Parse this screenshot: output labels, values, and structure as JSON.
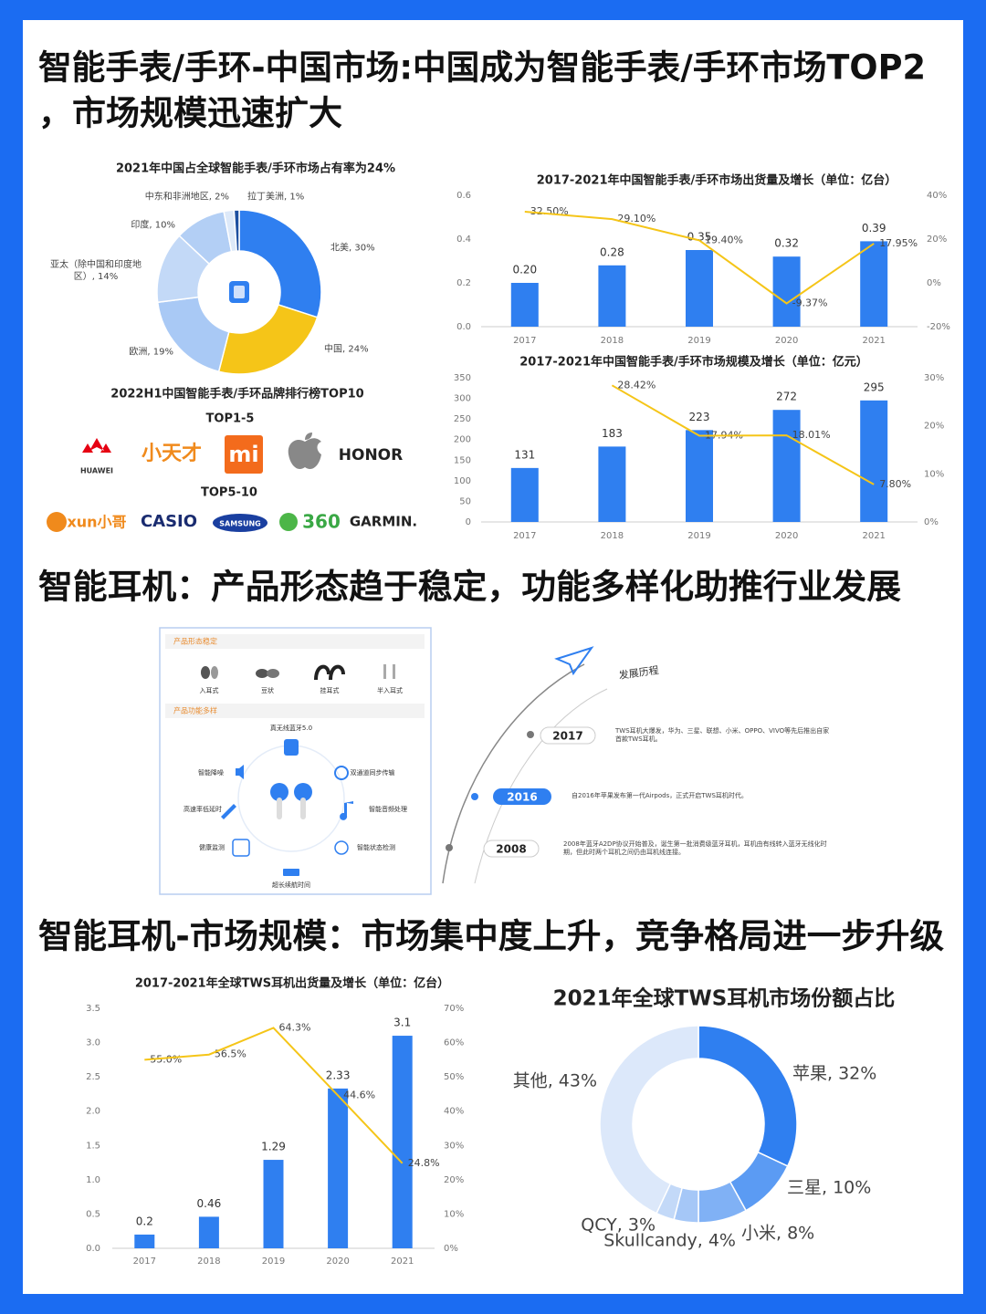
{
  "headings": [
    "智能手表/手环-中国市场:中国成为智能手表/手环市场TOP2",
    "，市场规模迅速扩大",
    "智能耳机：产品形态趋于稳定，功能多样化助推行业发展",
    "智能耳机-市场规模：市场集中度上升，竞争格局进一步升级"
  ],
  "chart_data": [
    {
      "type": "donut",
      "title": "2021年中国占全球智能手表/手环市场占有率为24%",
      "values": [
        30,
        24,
        19,
        14,
        10,
        2,
        1
      ],
      "value_labels": [
        "北美, 30%",
        "中国, 24%",
        "欧洲, 19%",
        "亚太（除中国和印度地区）, 14%",
        "印度, 10%",
        "中东和非洲地区, 2%",
        "拉丁美洲, 1%"
      ],
      "colors": [
        "#2f7ff0",
        "#f5c518",
        "#a9c9f5",
        "#c3d9f7",
        "#b3cff5",
        "#dde9f9",
        "#1d4fa0"
      ]
    },
    {
      "type": "bar_line",
      "title": "2017-2021年中国智能手表/手环市场出货量及增长（单位：亿台）",
      "x": [
        "2017",
        "2018",
        "2019",
        "2020",
        "2021"
      ],
      "series": [
        {
          "type": "bar",
          "color": "#2f7ff0",
          "values": [
            0.2,
            0.28,
            0.35,
            0.32,
            0.39
          ],
          "value_labels": [
            "0.20",
            "0.28",
            "0.35",
            "0.32",
            "0.39"
          ]
        },
        {
          "type": "line",
          "axis": "y2",
          "color": "#f5c518",
          "values": [
            32.5,
            29.1,
            19.4,
            -9.37,
            17.95
          ],
          "value_labels": [
            "32.50%",
            "29.10%",
            "19.40%",
            "-9.37%",
            "17.95%"
          ]
        }
      ],
      "ylim": [
        0,
        0.6
      ],
      "yticks": [
        {
          "value": 0,
          "label": "0.0"
        },
        0.2,
        0.4,
        0.6
      ],
      "y2lim": [
        -20,
        40
      ],
      "y2ticks": [
        {
          "value": -20,
          "label": "-20%"
        },
        {
          "value": 0,
          "label": "0%"
        },
        {
          "value": 20,
          "label": "20%"
        },
        {
          "value": 40,
          "label": "40%"
        }
      ]
    },
    {
      "type": "bar_line",
      "title": "2017-2021年中国智能手表/手环市场规模及增长（单位：亿元）",
      "x": [
        "2017",
        "2018",
        "2019",
        "2020",
        "2021"
      ],
      "series": [
        {
          "type": "bar",
          "color": "#2f7ff0",
          "values": [
            131,
            183,
            223,
            272,
            295
          ]
        },
        {
          "type": "line",
          "axis": "y2",
          "color": "#f5c518",
          "values": [
            null,
            28.42,
            17.94,
            18.01,
            7.8
          ],
          "value_labels": [
            null,
            "28.42%",
            "17.94%",
            "18.01%",
            "7.80%"
          ]
        }
      ],
      "ylim": [
        0,
        350
      ],
      "yticks": [
        0,
        50,
        100,
        150,
        200,
        250,
        300,
        350
      ],
      "y2lim": [
        0,
        30
      ],
      "y2ticks": [
        {
          "value": 0,
          "label": "0%"
        },
        {
          "value": 10,
          "label": "10%"
        },
        {
          "value": 20,
          "label": "20%"
        },
        {
          "value": 30,
          "label": "30%"
        }
      ]
    },
    {
      "type": "bar_line",
      "title": "2017-2021年全球TWS耳机出货量及增长（单位：亿台）",
      "x": [
        "2017",
        "2018",
        "2019",
        "2020",
        "2021"
      ],
      "series": [
        {
          "type": "bar",
          "color": "#2f7ff0",
          "values": [
            0.2,
            0.46,
            1.29,
            2.33,
            3.1
          ]
        },
        {
          "type": "line",
          "axis": "y2",
          "color": "#f5c518",
          "values": [
            55.0,
            56.5,
            64.3,
            44.6,
            24.8
          ],
          "value_labels": [
            "55.0%",
            "56.5%",
            "64.3%",
            "44.6%",
            "24.8%"
          ]
        }
      ],
      "ylim": [
        0,
        3.5
      ],
      "yticks": [
        {
          "value": 0,
          "label": "0.0"
        },
        {
          "value": 0.5,
          "label": "0.5"
        },
        {
          "value": 1,
          "label": "1.0"
        },
        {
          "value": 1.5,
          "label": "1.5"
        },
        {
          "value": 2,
          "label": "2.0"
        },
        {
          "value": 2.5,
          "label": "2.5"
        },
        {
          "value": 3,
          "label": "3.0"
        },
        {
          "value": 3.5,
          "label": "3.5"
        }
      ],
      "y2lim": [
        0,
        70
      ],
      "y2ticks": [
        {
          "value": 0,
          "label": "0%"
        },
        {
          "value": 10,
          "label": "10%"
        },
        {
          "value": 20,
          "label": "20%"
        },
        {
          "value": 30,
          "label": "30%"
        },
        {
          "value": 40,
          "label": "40%"
        },
        {
          "value": 50,
          "label": "50%"
        },
        {
          "value": 60,
          "label": "60%"
        },
        {
          "value": 70,
          "label": "70%"
        }
      ]
    },
    {
      "type": "donut",
      "title": "2021年全球TWS耳机市场份额占比",
      "values": [
        32,
        10,
        8,
        4,
        3,
        43
      ],
      "value_labels": [
        "苹果, 32%",
        "三星, 10%",
        "小米, 8%",
        "Skullcandy, 4%",
        "QCY, 3%",
        "其他, 43%"
      ],
      "colors": [
        "#2f7ff0",
        "#5b9bf3",
        "#80b1f5",
        "#a5c7f7",
        "#c3d9f8",
        "#dce8fa"
      ]
    }
  ],
  "brands": {
    "title": "2022H1中国智能手表/手环品牌排行榜TOP10",
    "top1_5_label": "TOP1-5",
    "top1_5": [
      "HUAWEI",
      "小天才",
      "mi",
      "HONOR"
    ],
    "top5_10_label": "TOP5-10",
    "top5_10": [
      "xun小哥",
      "CASIO",
      "SAMSUNG",
      "360",
      "GARMIN."
    ]
  },
  "earbuds": {
    "form_title": "产品形态稳定",
    "forms": [
      "入耳式",
      "豆状",
      "挂耳式",
      "半入耳式"
    ],
    "function_title": "产品功能多样",
    "functions": [
      "真无线蓝牙5.0",
      "双通道同步传输",
      "智能音频处理",
      "智能状态检测",
      "超长续航时间",
      "健康监测",
      "高速率低延时",
      "智能降噪"
    ]
  },
  "timeline": {
    "title": "发展历程",
    "events": [
      {
        "year": "2017",
        "text": "TWS耳机大爆发，华为、三星、联想、小米、OPPO、VIVO等先后推出自家首款TWS耳机。"
      },
      {
        "year": "2016",
        "text": "自2016年苹果发布第一代Airpods，正式开启TWS耳机时代。"
      },
      {
        "year": "2008",
        "text": "2008年蓝牙A2DP协议开始普及，诞生第一批消费级蓝牙耳机，耳机由有线转入蓝牙无线化时期，但此时两个耳机之间仍由耳机线连接。"
      }
    ]
  }
}
